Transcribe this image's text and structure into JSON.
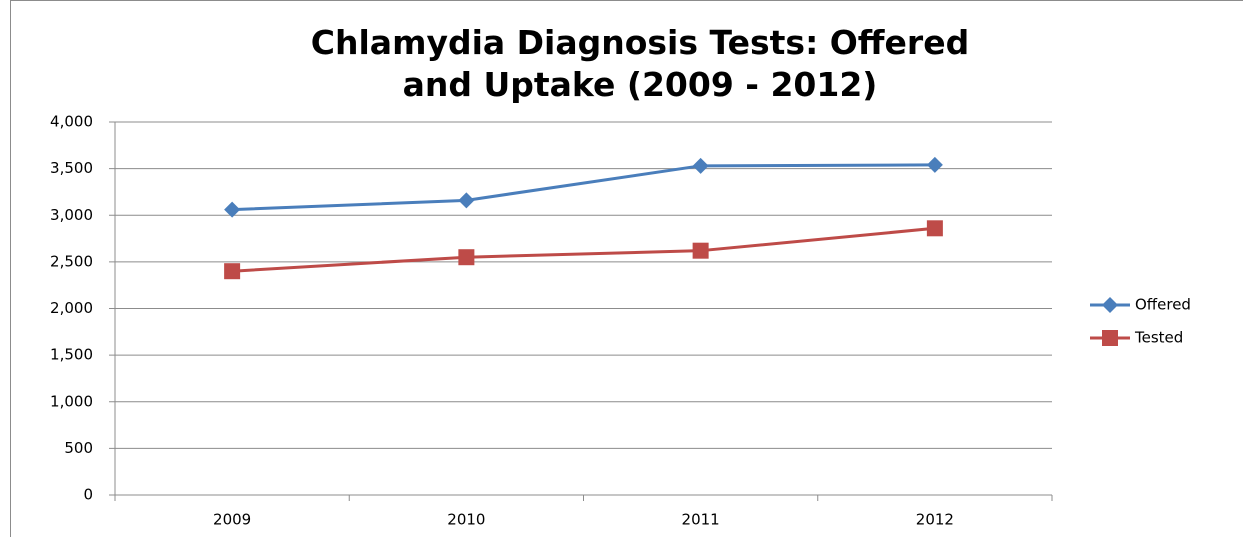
{
  "chart_data": {
    "type": "line",
    "title": "Chlamydia Diagnosis Tests: Offered and Uptake (2009 - 2012)",
    "categories": [
      "2009",
      "2010",
      "2011",
      "2012"
    ],
    "series": [
      {
        "name": "Offered",
        "color": "#4a7ebb",
        "marker": "diamond",
        "values": [
          3060,
          3160,
          3530,
          3540
        ]
      },
      {
        "name": "Tested",
        "color": "#be4b48",
        "marker": "square",
        "values": [
          2400,
          2550,
          2620,
          2860
        ]
      }
    ],
    "ylim": [
      0,
      4000
    ],
    "yticks": [
      0,
      500,
      {
        "value": 1000,
        "label": "1,000"
      },
      {
        "value": 1500,
        "label": "1,500"
      },
      {
        "value": 2000,
        "label": "2,000"
      },
      {
        "value": 2500,
        "label": "2,500"
      },
      {
        "value": 3000,
        "label": "3,000"
      },
      {
        "value": 3500,
        "label": "3,500"
      },
      {
        "value": 4000,
        "label": "4,000"
      }
    ],
    "grid": true,
    "legend": "right"
  }
}
